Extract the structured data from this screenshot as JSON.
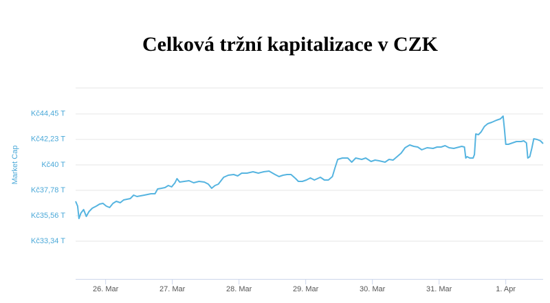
{
  "chart_data": {
    "type": "line",
    "title": "Celková tržní kapitalizace v CZK",
    "y_label": "Market Cap",
    "x": [
      -0.45,
      -0.42,
      -0.4,
      -0.37,
      -0.33,
      -0.29,
      -0.25,
      -0.2,
      -0.14,
      -0.09,
      -0.04,
      0.01,
      0.06,
      0.11,
      0.16,
      0.22,
      0.27,
      0.32,
      0.37,
      0.42,
      0.47,
      0.58,
      0.68,
      0.74,
      0.78,
      0.84,
      0.89,
      0.94,
      0.99,
      1.04,
      1.07,
      1.11,
      1.18,
      1.25,
      1.32,
      1.4,
      1.48,
      1.54,
      1.59,
      1.64,
      1.69,
      1.73,
      1.77,
      1.84,
      1.92,
      1.98,
      2.04,
      2.12,
      2.21,
      2.29,
      2.37,
      2.45,
      2.54,
      2.6,
      2.66,
      2.72,
      2.78,
      2.85,
      2.89,
      2.95,
      3.01,
      3.07,
      3.13,
      3.22,
      3.28,
      3.34,
      3.4,
      3.44,
      3.48,
      3.55,
      3.63,
      3.69,
      3.75,
      3.84,
      3.9,
      3.98,
      4.04,
      4.1,
      4.19,
      4.25,
      4.31,
      4.37,
      4.43,
      4.49,
      4.56,
      4.62,
      4.68,
      4.74,
      4.82,
      4.91,
      4.97,
      5.03,
      5.09,
      5.15,
      5.22,
      5.3,
      5.34,
      5.38,
      5.4,
      5.42,
      5.46,
      5.51,
      5.53,
      5.55,
      5.59,
      5.63,
      5.68,
      5.73,
      5.79,
      5.86,
      5.92,
      5.96,
      5.98,
      6.0,
      6.04,
      6.1,
      6.16,
      6.23,
      6.27,
      6.31,
      6.33,
      6.36,
      6.39,
      6.42,
      6.47,
      6.52,
      6.56
    ],
    "series": [
      {
        "name": "Market Cap",
        "color": "#55b4e0",
        "values": [
          36.82,
          36.4,
          35.32,
          35.8,
          36.1,
          35.5,
          35.92,
          36.22,
          36.4,
          36.58,
          36.64,
          36.4,
          36.28,
          36.64,
          36.82,
          36.7,
          36.94,
          37.0,
          37.06,
          37.36,
          37.24,
          37.36,
          37.48,
          37.48,
          37.9,
          37.96,
          38.02,
          38.2,
          38.08,
          38.44,
          38.8,
          38.5,
          38.56,
          38.62,
          38.44,
          38.56,
          38.5,
          38.32,
          37.96,
          38.2,
          38.32,
          38.62,
          38.92,
          39.1,
          39.16,
          39.04,
          39.28,
          39.28,
          39.4,
          39.28,
          39.4,
          39.46,
          39.16,
          38.98,
          39.1,
          39.16,
          39.16,
          38.8,
          38.56,
          38.56,
          38.68,
          38.86,
          38.68,
          38.92,
          38.68,
          38.68,
          38.98,
          39.76,
          40.48,
          40.6,
          40.6,
          40.24,
          40.6,
          40.48,
          40.6,
          40.3,
          40.42,
          40.36,
          40.24,
          40.48,
          40.42,
          40.72,
          41.02,
          41.5,
          41.74,
          41.62,
          41.56,
          41.32,
          41.5,
          41.44,
          41.56,
          41.56,
          41.68,
          41.5,
          41.44,
          41.56,
          41.62,
          41.56,
          40.6,
          40.72,
          40.6,
          40.6,
          40.9,
          42.7,
          42.64,
          42.88,
          43.36,
          43.6,
          43.72,
          43.9,
          44.02,
          44.26,
          43.12,
          41.8,
          41.8,
          41.92,
          42.04,
          42.04,
          42.1,
          41.92,
          40.6,
          40.72,
          41.44,
          42.28,
          42.22,
          42.1,
          41.86
        ]
      }
    ],
    "xlim": [
      -0.45,
      6.56
    ],
    "xticks": [
      {
        "value": 0,
        "label": "26. Mar"
      },
      {
        "value": 1,
        "label": "27. Mar"
      },
      {
        "value": 2,
        "label": "28. Mar"
      },
      {
        "value": 3,
        "label": "29. Mar"
      },
      {
        "value": 4,
        "label": "30. Mar"
      },
      {
        "value": 5,
        "label": "31. Mar"
      },
      {
        "value": 6,
        "label": "1. Apr"
      }
    ],
    "ylim": [
      30.04,
      46.72
    ],
    "yticks": [
      {
        "value": 33.34,
        "label": "Kč33,34 T"
      },
      {
        "value": 35.56,
        "label": "Kč35,56 T"
      },
      {
        "value": 37.78,
        "label": "Kč37,78 T"
      },
      {
        "value": 40,
        "label": "Kč40 T"
      },
      {
        "value": 42.23,
        "label": "Kč42,23 T"
      },
      {
        "value": 44.45,
        "label": "Kč44,45 T"
      }
    ],
    "grid": true
  }
}
